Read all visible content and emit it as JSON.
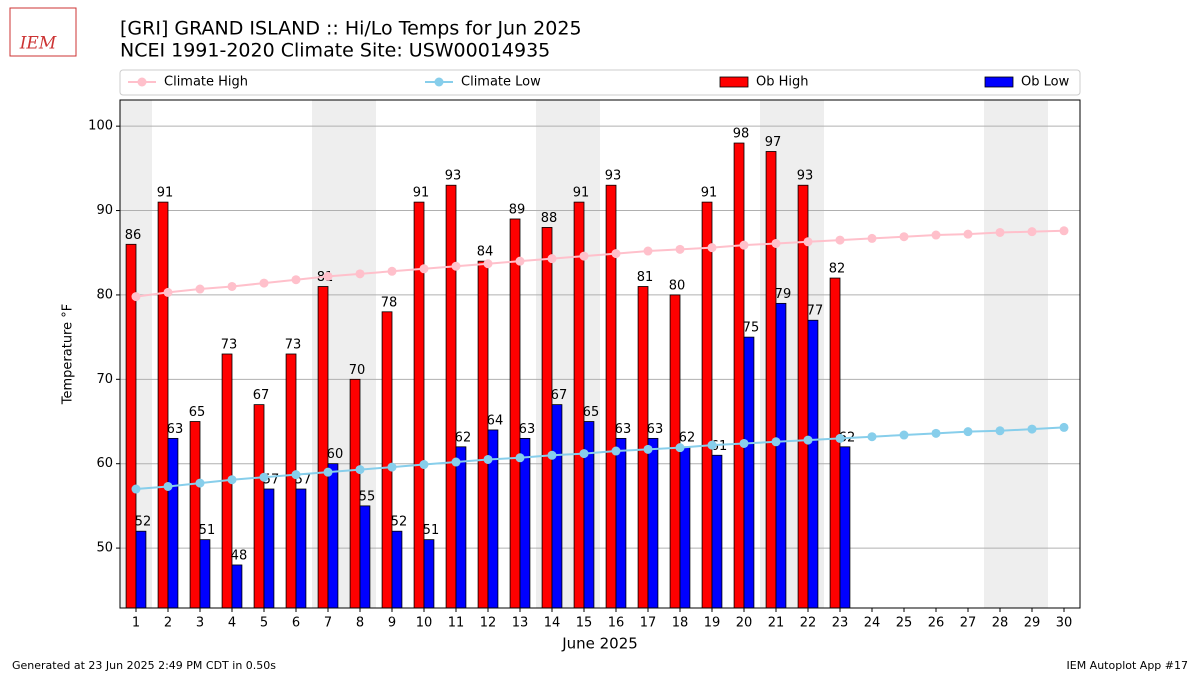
{
  "chart_data": {
    "type": "bar",
    "logo": "IEM",
    "title": "[GRI] GRAND ISLAND :: Hi/Lo Temps for Jun 2025",
    "subtitle": "NCEI 1991-2020 Climate Site: USW00014935",
    "y_label": "Temperature °F",
    "x_label": "June 2025",
    "footer_left": "Generated at 23 Jun 2025 2:49 PM CDT in 0.50s",
    "footer_right": "IEM Autoplot App #17",
    "x": [
      1,
      2,
      3,
      4,
      5,
      6,
      7,
      8,
      9,
      10,
      11,
      12,
      13,
      14,
      15,
      16,
      17,
      18,
      19,
      20,
      21,
      22,
      23,
      24,
      25,
      26,
      27,
      28,
      29,
      30
    ],
    "xlim": [
      0.5,
      30.5
    ],
    "ylim": [
      42.9,
      103.1
    ],
    "yticks": [
      50,
      60,
      70,
      80,
      90,
      100
    ],
    "grid": true,
    "shaded_x": [
      1,
      7,
      8,
      14,
      15,
      21,
      22,
      28,
      29
    ],
    "series": [
      {
        "name": "Climate High",
        "color": "#ffc0cb",
        "style": "line",
        "values": [
          79.8,
          80.3,
          80.7,
          81.0,
          81.4,
          81.8,
          82.2,
          82.5,
          82.8,
          83.1,
          83.4,
          83.7,
          84.0,
          84.3,
          84.6,
          84.9,
          85.2,
          85.4,
          85.6,
          85.9,
          86.1,
          86.3,
          86.5,
          86.7,
          86.9,
          87.1,
          87.2,
          87.4,
          87.5,
          87.6
        ]
      },
      {
        "name": "Climate Low",
        "color": "#87ceeb",
        "style": "line",
        "values": [
          57.0,
          57.3,
          57.7,
          58.1,
          58.4,
          58.7,
          59.0,
          59.3,
          59.6,
          59.9,
          60.2,
          60.5,
          60.7,
          61.0,
          61.2,
          61.5,
          61.7,
          61.9,
          62.2,
          62.4,
          62.6,
          62.8,
          63.0,
          63.2,
          63.4,
          63.6,
          63.8,
          63.9,
          64.1,
          64.3
        ]
      },
      {
        "name": "Ob High",
        "color": "#ff0000",
        "style": "bar",
        "values": [
          86,
          91,
          65,
          73,
          67,
          73,
          81,
          70,
          78,
          91,
          93,
          84,
          89,
          88,
          91,
          93,
          81,
          80,
          91,
          98,
          97,
          93,
          82,
          null,
          null,
          null,
          null,
          null,
          null,
          null
        ]
      },
      {
        "name": "Ob Low",
        "color": "#0000ff",
        "style": "bar",
        "values": [
          52,
          63,
          51,
          48,
          57,
          57,
          60,
          55,
          52,
          51,
          62,
          64,
          63,
          67,
          65,
          63,
          63,
          62,
          61,
          75,
          79,
          77,
          62,
          null,
          null,
          null,
          null,
          null,
          null,
          null
        ]
      }
    ]
  }
}
